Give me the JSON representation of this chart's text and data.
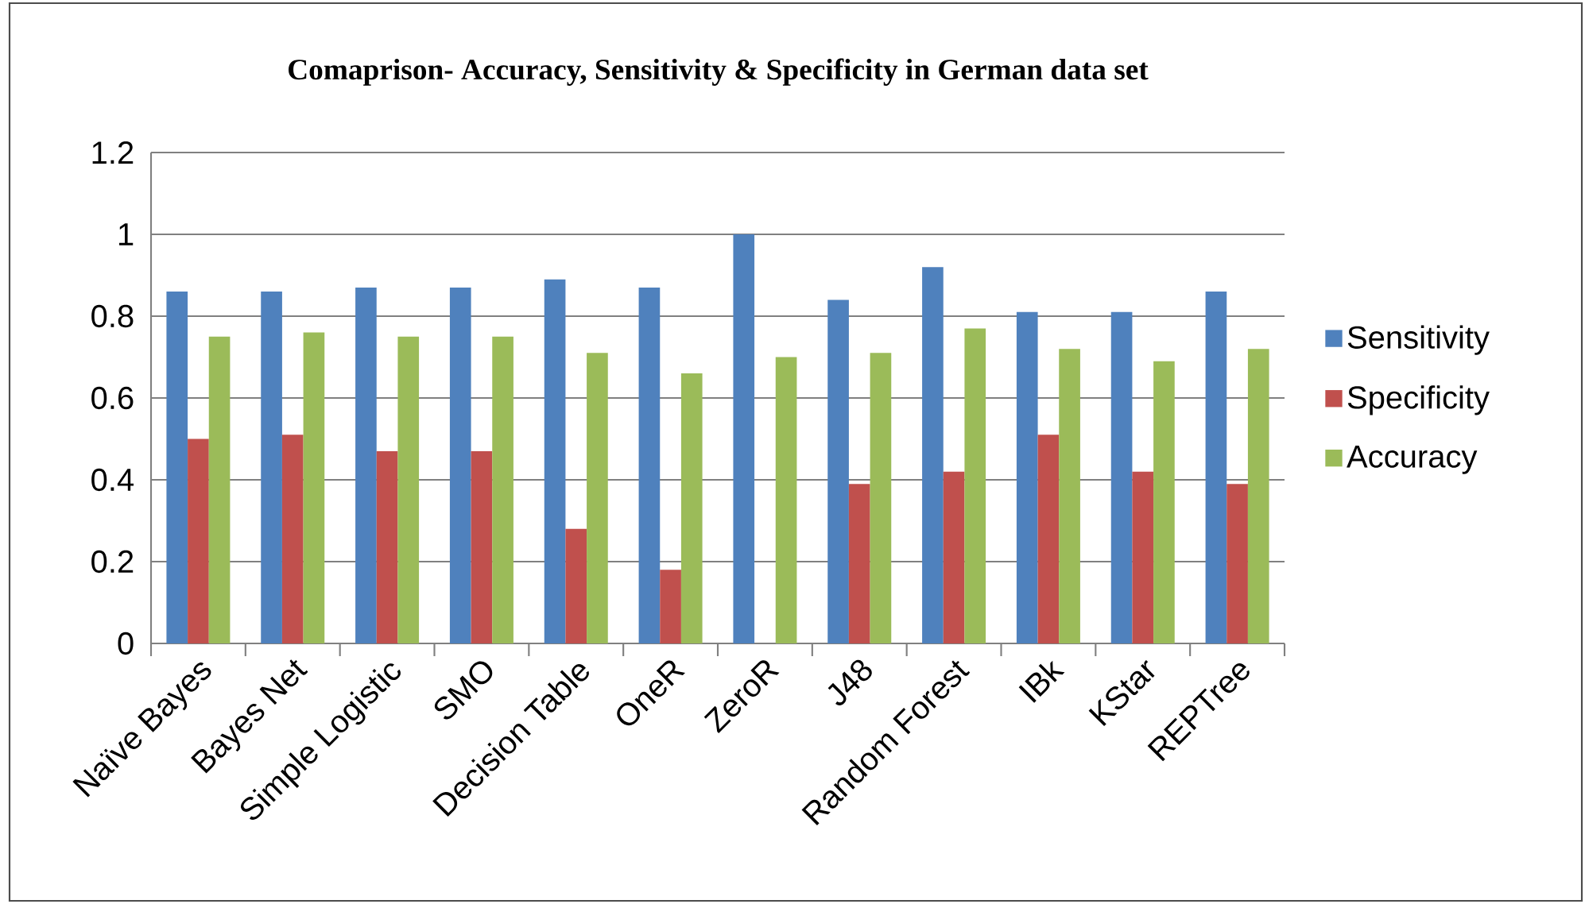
{
  "chart_data": {
    "type": "bar",
    "title": "Comaprison- Accuracy, Sensitivity & Specificity in German data set",
    "categories": [
      "Naïve Bayes",
      "Bayes Net",
      "Simple Logistic",
      "SMO",
      "Decision Table",
      "OneR",
      "ZeroR",
      "J48",
      "Random Forest",
      "IBk",
      "KStar",
      "REPTree"
    ],
    "series": [
      {
        "name": "Sensitivity",
        "color": "#4f81bd",
        "values": [
          0.86,
          0.86,
          0.87,
          0.87,
          0.89,
          0.87,
          1.0,
          0.84,
          0.92,
          0.81,
          0.81,
          0.86
        ]
      },
      {
        "name": "Specificity",
        "color": "#c0504d",
        "values": [
          0.5,
          0.51,
          0.47,
          0.47,
          0.28,
          0.18,
          0,
          0.39,
          0.42,
          0.51,
          0.42,
          0.39
        ]
      },
      {
        "name": "Accuracy",
        "color": "#9bbb59",
        "values": [
          0.75,
          0.76,
          0.75,
          0.75,
          0.71,
          0.66,
          0.7,
          0.71,
          0.77,
          0.72,
          0.69,
          0.72
        ]
      }
    ],
    "ylim": [
      0,
      1.2
    ],
    "yticks": [
      0,
      0.2,
      0.4,
      0.6,
      0.8,
      1,
      1.2
    ],
    "grid": "y",
    "legend": "right"
  }
}
